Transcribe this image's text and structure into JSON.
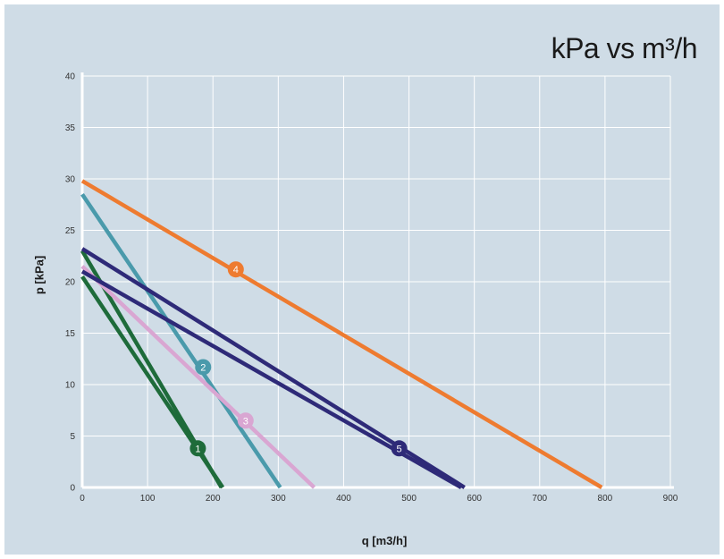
{
  "chart_data": {
    "type": "line",
    "title": "kPa vs m³/h",
    "xlabel": "q [m3/h]",
    "ylabel": "p [kPa]",
    "xlim": [
      0,
      900
    ],
    "ylim": [
      0,
      40
    ],
    "xticks": [
      0,
      100,
      200,
      300,
      400,
      500,
      600,
      700,
      800,
      900
    ],
    "yticks": [
      0,
      5,
      10,
      15,
      20,
      25,
      30,
      35,
      40
    ],
    "grid": true,
    "series": [
      {
        "name": "1",
        "color": "#1e6b3a",
        "lines": [
          [
            [
              0,
              23.0
            ],
            [
              213,
              0
            ]
          ],
          [
            [
              0,
              20.5
            ],
            [
              215,
              0
            ]
          ]
        ],
        "marker": [
          177,
          3.8
        ]
      },
      {
        "name": "2",
        "color": "#4a9aab",
        "lines": [
          [
            [
              0,
              28.5
            ],
            [
              303,
              0
            ]
          ]
        ],
        "marker": [
          185,
          11.7
        ]
      },
      {
        "name": "3",
        "color": "#d9a6d2",
        "lines": [
          [
            [
              0,
              21.5
            ],
            [
              355,
              0
            ]
          ]
        ],
        "marker": [
          250,
          6.5
        ]
      },
      {
        "name": "4",
        "color": "#ee7b30",
        "lines": [
          [
            [
              0,
              29.8
            ],
            [
              795,
              0
            ]
          ]
        ],
        "marker": [
          235,
          21.2
        ]
      },
      {
        "name": "5",
        "color": "#2e2a78",
        "lines": [
          [
            [
              0,
              23.2
            ],
            [
              585,
              0
            ]
          ],
          [
            [
              0,
              21.0
            ],
            [
              580,
              0
            ]
          ]
        ],
        "marker": [
          485,
          3.8
        ]
      }
    ]
  }
}
